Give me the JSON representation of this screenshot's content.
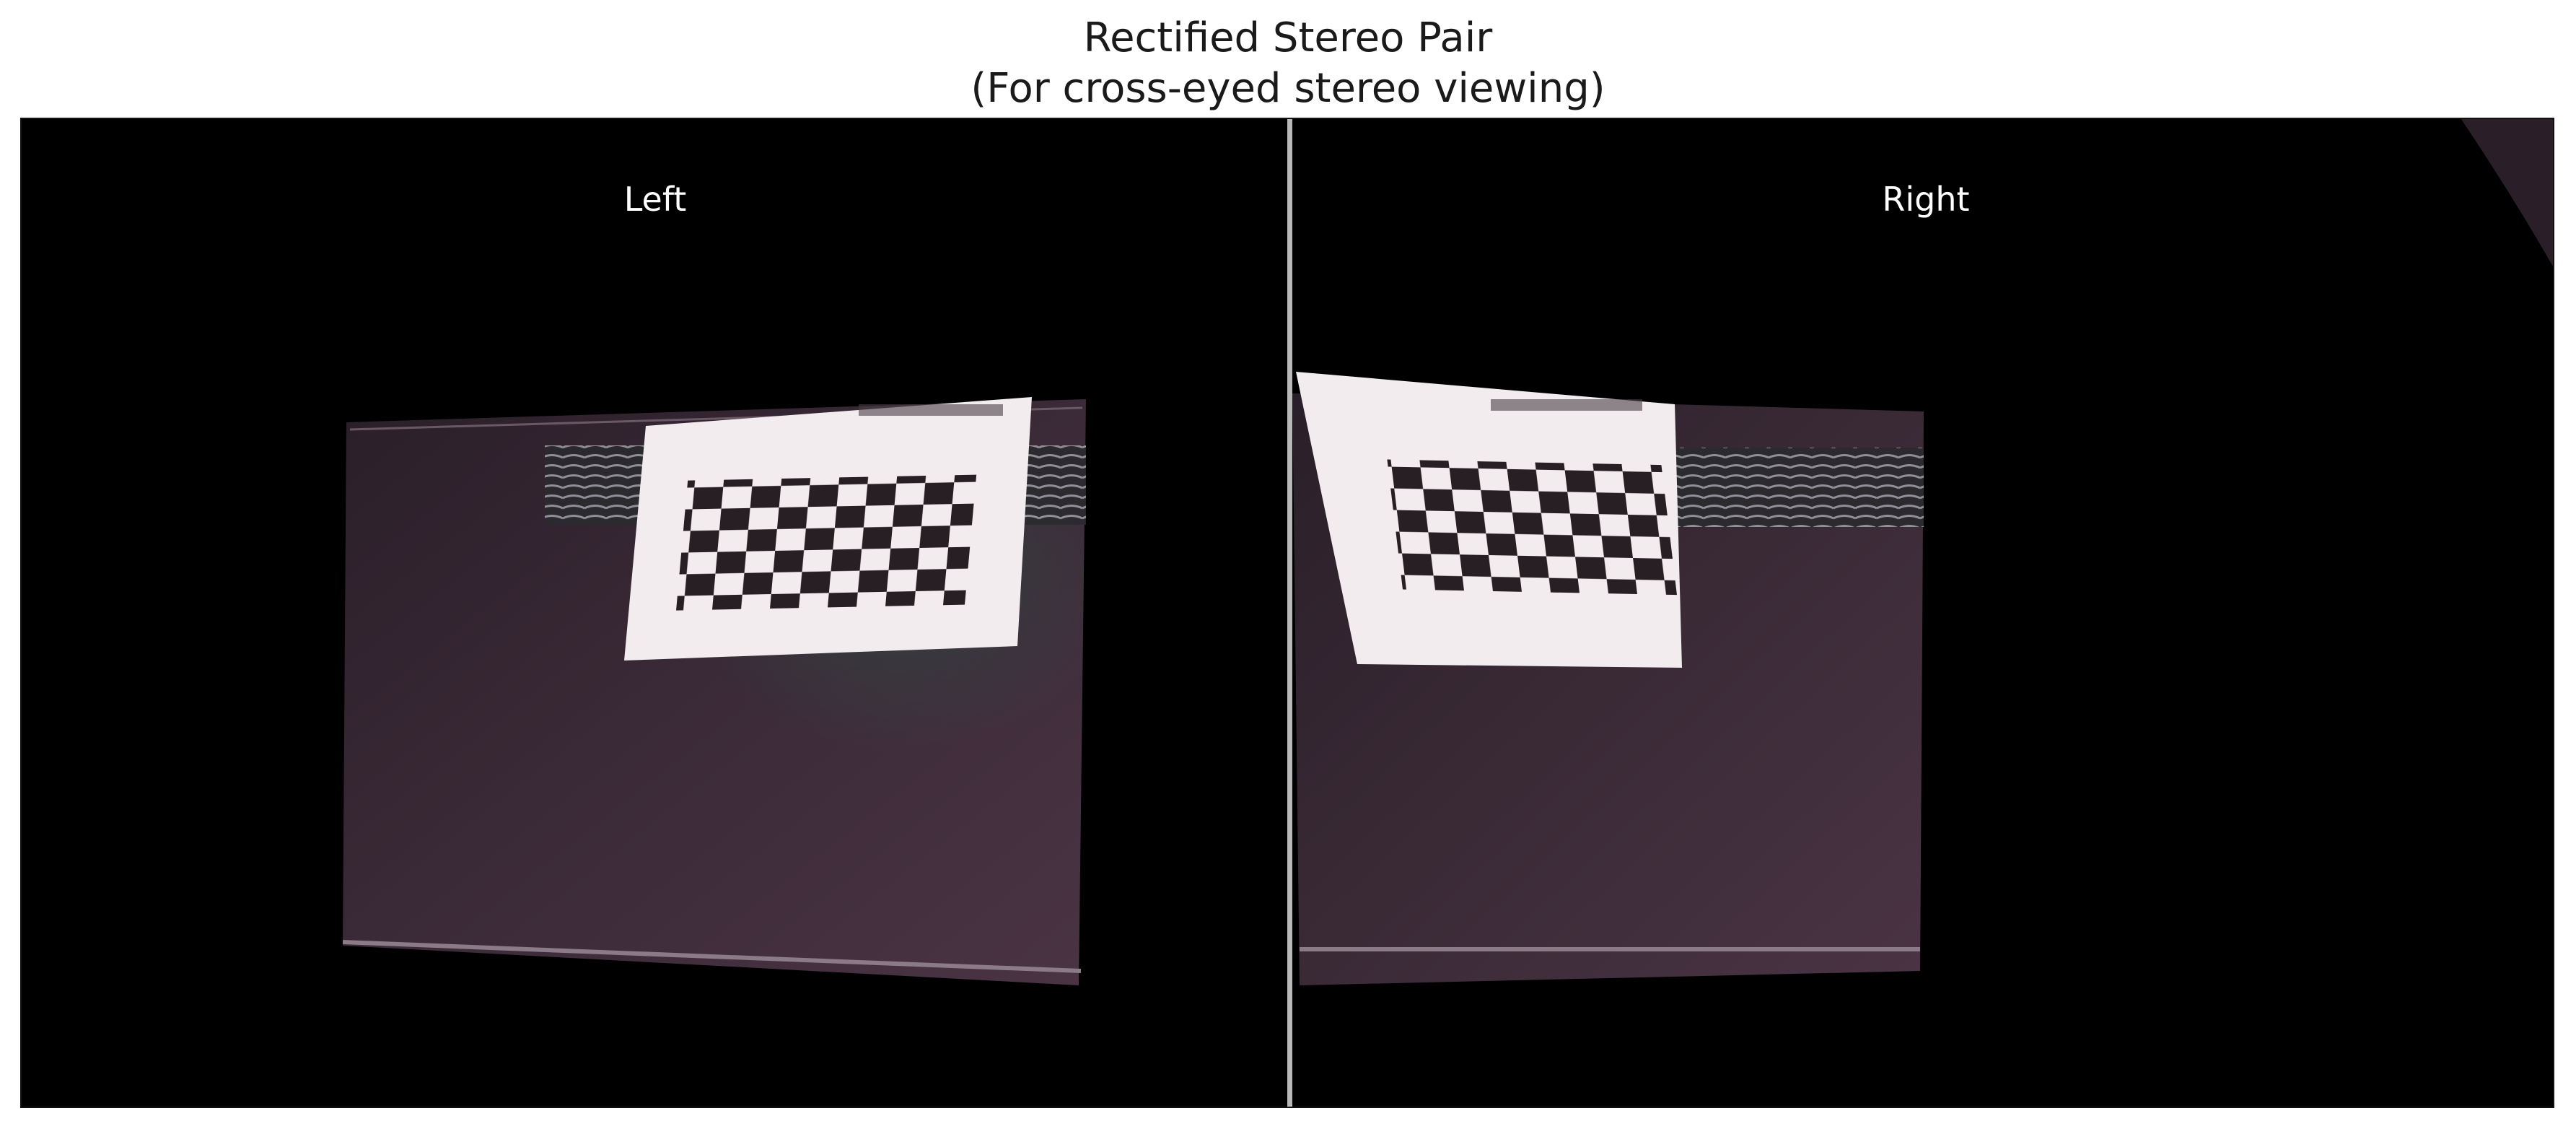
{
  "figure": {
    "title_line1": "Rectified Stereo Pair",
    "title_line2": "(For cross-eyed stereo viewing)"
  },
  "views": {
    "left": {
      "label": "Left",
      "description": "Rectified left camera image: translucent plastic tray with a checkerboard calibration target and a threaded rod behind it"
    },
    "right": {
      "label": "Right",
      "description": "Rectified right camera image: same scene shifted left, checkerboard target near left edge"
    }
  },
  "scene_colors": {
    "background": "#000000",
    "tray": "#3a2a36",
    "target_paper": "#f2ecee",
    "checker_dark": "#1c1418",
    "divider": "#b8b8b8"
  }
}
